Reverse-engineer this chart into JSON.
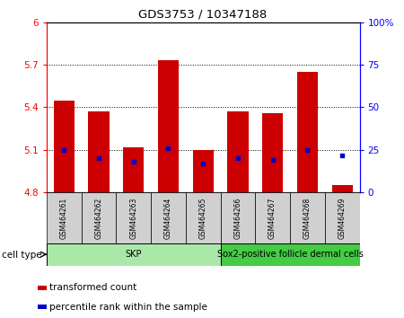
{
  "title": "GDS3753 / 10347188",
  "samples": [
    "GSM464261",
    "GSM464262",
    "GSM464263",
    "GSM464264",
    "GSM464265",
    "GSM464266",
    "GSM464267",
    "GSM464268",
    "GSM464269"
  ],
  "transformed_count": [
    5.45,
    5.37,
    5.12,
    5.73,
    5.1,
    5.37,
    5.36,
    5.65,
    4.85
  ],
  "base_value": 4.8,
  "percentile_rank": [
    25,
    20,
    18,
    26,
    17,
    20,
    19,
    25,
    22
  ],
  "ylim_left": [
    4.8,
    6.0
  ],
  "ylim_right": [
    0,
    100
  ],
  "yticks_left": [
    4.8,
    5.1,
    5.4,
    5.7,
    6.0
  ],
  "yticks_right": [
    0,
    25,
    50,
    75,
    100
  ],
  "ytick_labels_left": [
    "4.8",
    "5.1",
    "5.4",
    "5.7",
    "6"
  ],
  "ytick_labels_right": [
    "0",
    "25",
    "50",
    "75",
    "100%"
  ],
  "hlines": [
    5.1,
    5.4,
    5.7
  ],
  "bar_color": "#cc0000",
  "dot_color": "#0000cc",
  "cell_types": [
    {
      "label": "SKP",
      "samples": [
        0,
        1,
        2,
        3,
        4
      ],
      "color": "#aae8aa"
    },
    {
      "label": "Sox2-positive follicle dermal cells",
      "samples": [
        5,
        6,
        7,
        8
      ],
      "color": "#44cc44"
    }
  ],
  "cell_type_label": "cell type",
  "legend": [
    {
      "label": "transformed count",
      "color": "#cc0000"
    },
    {
      "label": "percentile rank within the sample",
      "color": "#0000cc"
    }
  ],
  "background_color": "#ffffff",
  "tick_label_area_color": "#d0d0d0"
}
